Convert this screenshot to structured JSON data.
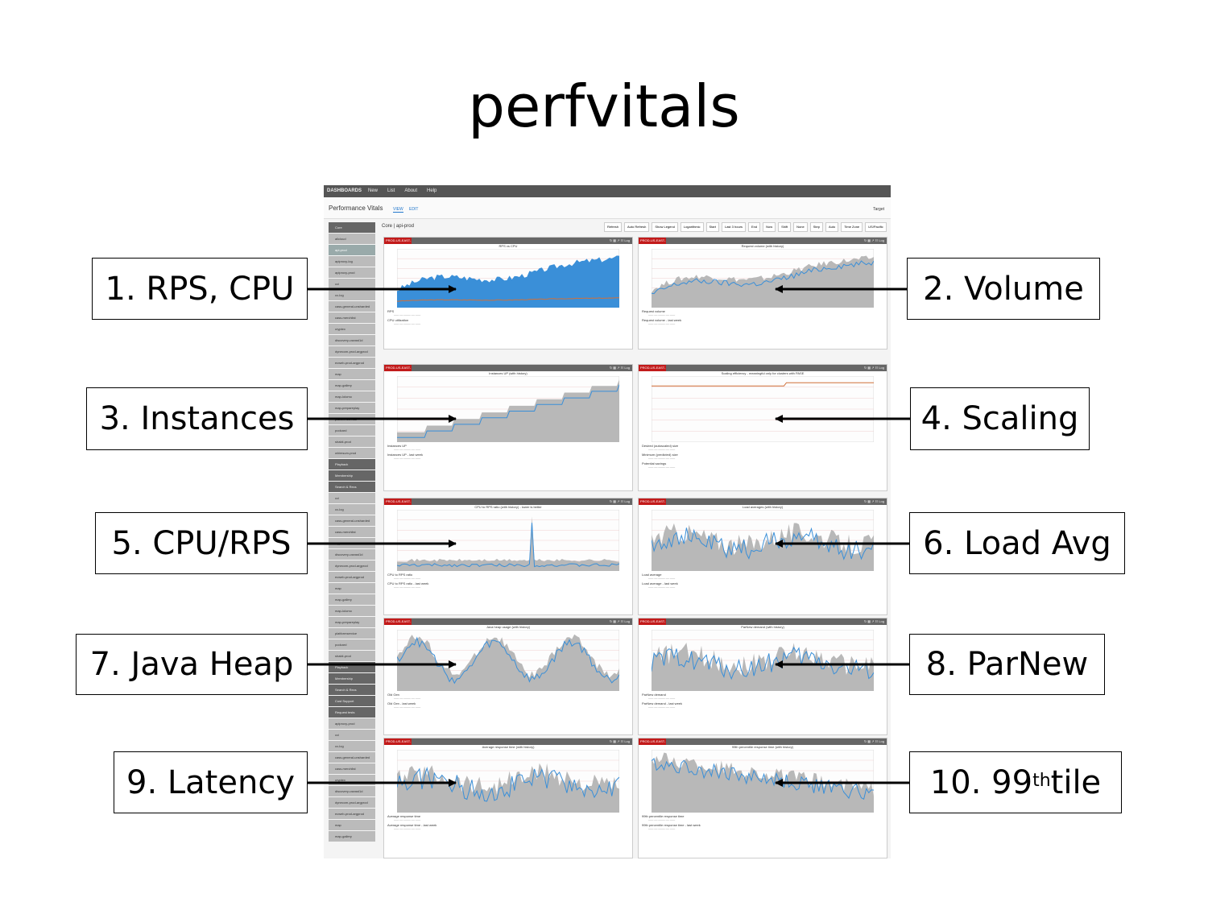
{
  "slide": {
    "title": "perfvitals"
  },
  "app": {
    "brand": "DASHBOARDS",
    "nav": [
      "New",
      "List",
      "About",
      "Help"
    ],
    "page_title": "Performance Vitals",
    "view_tab": "VIEW",
    "edit_tab": "EDIT",
    "target_label": "Target",
    "breadcrumb": "Core | api-prod",
    "controls": [
      "Refresh",
      "Auto Refresh",
      "Show Legend",
      "Logarithmic",
      "Start",
      "Last 3 hours",
      "End",
      "Now",
      "Shift",
      "None",
      "Step",
      "Auto",
      "Time Zone",
      "US/Pacific"
    ]
  },
  "sidebar": {
    "items": [
      {
        "label": "Core",
        "style": "dark"
      },
      {
        "label": "allcloud",
        "style": "normal"
      },
      {
        "label": "api-prod",
        "style": "active"
      },
      {
        "label": "apiproxy-log",
        "style": "normal"
      },
      {
        "label": "apiproxy-prod",
        "style": "normal"
      },
      {
        "label": "cci",
        "style": "normal"
      },
      {
        "label": "cc-log",
        "style": "normal"
      },
      {
        "label": "cass-general-unsharded",
        "style": "normal"
      },
      {
        "label": "cass-merchlist",
        "style": "normal"
      },
      {
        "label": "cryptex",
        "style": "normal"
      },
      {
        "label": "discovery-useast1d",
        "style": "normal"
      },
      {
        "label": "dynecom-prod-argprod",
        "style": "normal"
      },
      {
        "label": "ecweb-prod-argprod",
        "style": "normal"
      },
      {
        "label": "map",
        "style": "normal"
      },
      {
        "label": "map-gallery",
        "style": "normal"
      },
      {
        "label": "map-lolomo",
        "style": "normal"
      },
      {
        "label": "map-prepareplay",
        "style": "normal"
      },
      {
        "label": "platformservice",
        "style": "normal"
      },
      {
        "label": "podcard",
        "style": "normal"
      },
      {
        "label": "shakti-prod",
        "style": "normal"
      },
      {
        "label": "whimsum-prod",
        "style": "normal"
      },
      {
        "label": "Playback",
        "style": "dark"
      },
      {
        "label": "Membership",
        "style": "dark"
      },
      {
        "label": "Search & Recs",
        "style": "dark"
      },
      {
        "label": "cci",
        "style": "normal"
      },
      {
        "label": "cc-log",
        "style": "normal"
      },
      {
        "label": "cass-general-unsharded",
        "style": "normal"
      },
      {
        "label": "cass-merchlist",
        "style": "normal"
      },
      {
        "label": "cryptex",
        "style": "normal"
      },
      {
        "label": "discovery-useast1d",
        "style": "normal"
      },
      {
        "label": "dynecom-prod-argprod",
        "style": "normal"
      },
      {
        "label": "ecweb-prod-argprod",
        "style": "normal"
      },
      {
        "label": "map",
        "style": "normal"
      },
      {
        "label": "map-gallery",
        "style": "normal"
      },
      {
        "label": "map-lolomo",
        "style": "normal"
      },
      {
        "label": "map-prepareplay",
        "style": "normal"
      },
      {
        "label": "platformservice",
        "style": "normal"
      },
      {
        "label": "podcard",
        "style": "normal"
      },
      {
        "label": "shakti-prod",
        "style": "normal"
      },
      {
        "label": "Playback",
        "style": "dark"
      },
      {
        "label": "Membership",
        "style": "dark"
      },
      {
        "label": "Search & Recs",
        "style": "dark"
      },
      {
        "label": "Cust Support",
        "style": "dark"
      },
      {
        "label": "Request tests",
        "style": "dark"
      },
      {
        "label": "apiproxy-prod",
        "style": "normal"
      },
      {
        "label": "cci",
        "style": "normal"
      },
      {
        "label": "cc-log",
        "style": "normal"
      },
      {
        "label": "cass-general-unsharded",
        "style": "normal"
      },
      {
        "label": "cass-merchlist",
        "style": "normal"
      },
      {
        "label": "cryptex",
        "style": "normal"
      },
      {
        "label": "discovery-useast1d",
        "style": "normal"
      },
      {
        "label": "dynecom-prod-argprod",
        "style": "normal"
      },
      {
        "label": "ecweb-prod-argprod",
        "style": "normal"
      },
      {
        "label": "map",
        "style": "normal"
      },
      {
        "label": "map-gallery",
        "style": "normal"
      }
    ]
  },
  "panels": [
    {
      "region": "PROD-US-EAST-1",
      "title": "RPS vs CPU",
      "legend": [
        "RPS",
        "CPU utilization"
      ],
      "shape": "rising",
      "style": "blue-area"
    },
    {
      "region": "PROD-US-EAST-1",
      "title": "Request volume (with history)",
      "legend": [
        "Request volume",
        "Request volume - last week"
      ],
      "shape": "rising",
      "style": "gray-area-blue-line"
    },
    {
      "region": "PROD-US-EAST-1",
      "title": "Instances UP (with history)",
      "legend": [
        "Instances UP",
        "Instances UP - last week"
      ],
      "shape": "step",
      "style": "gray-area-blue-line"
    },
    {
      "region": "PROD-US-EAST-1",
      "title": "Scaling efficiency - meaningful only for clusters with PASE",
      "legend": [
        "Desired (autoscaled) size",
        "Minimum (predicted) size",
        "Potential savings"
      ],
      "shape": "flat",
      "style": "orange-line"
    },
    {
      "region": "PROD-US-EAST-1",
      "title": "CPU to RPS ratio (with history) - lower is better",
      "legend": [
        "CPU to RPS ratio",
        "CPU to RPS ratio - last week"
      ],
      "shape": "low",
      "style": "gray-area-blue-line"
    },
    {
      "region": "PROD-US-EAST-1",
      "title": "Load averages (with history)",
      "legend": [
        "Load average",
        "Load average - last week"
      ],
      "shape": "noisy",
      "style": "gray-area-blue-line"
    },
    {
      "region": "PROD-US-EAST-1",
      "title": "Java heap usage (with history)",
      "legend": [
        "Old Gen",
        "Old Gen - last week"
      ],
      "shape": "wave",
      "style": "gray-area-blue-line"
    },
    {
      "region": "PROD-US-EAST-1",
      "title": "ParNew demand (with history)",
      "legend": [
        "ParNew demand",
        "ParNew demand - last week"
      ],
      "shape": "noisy",
      "style": "gray-area-blue-line"
    },
    {
      "region": "PROD-US-EAST-1",
      "title": "Average response time (with history)",
      "legend": [
        "Average response time",
        "Average response time - last week"
      ],
      "shape": "noisy",
      "style": "gray-area-blue-line"
    },
    {
      "region": "PROD-US-EAST-1",
      "title": "99th percentile response time (with history)",
      "legend": [
        "99th percentile response time",
        "99th percentile response time - last week"
      ],
      "shape": "falling",
      "style": "gray-area-blue-line"
    }
  ],
  "callouts": [
    {
      "label": "1. RPS, CPU"
    },
    {
      "label": "2. Volume"
    },
    {
      "label": "3. Instances"
    },
    {
      "label": "4. Scaling"
    },
    {
      "label": "5. CPU/RPS"
    },
    {
      "label": "6. Load Avg"
    },
    {
      "label": "7. Java Heap"
    },
    {
      "label": "8. ParNew"
    },
    {
      "label": "9. Latency"
    },
    {
      "label_pre": "10. 99",
      "label_sup": "th",
      "label_post": " tile"
    }
  ],
  "colors": {
    "accent_blue": "#3a8fd8",
    "region_red": "#c21a1a",
    "history_gray": "#b8b8b8",
    "cpu_orange": "#d0703a"
  }
}
